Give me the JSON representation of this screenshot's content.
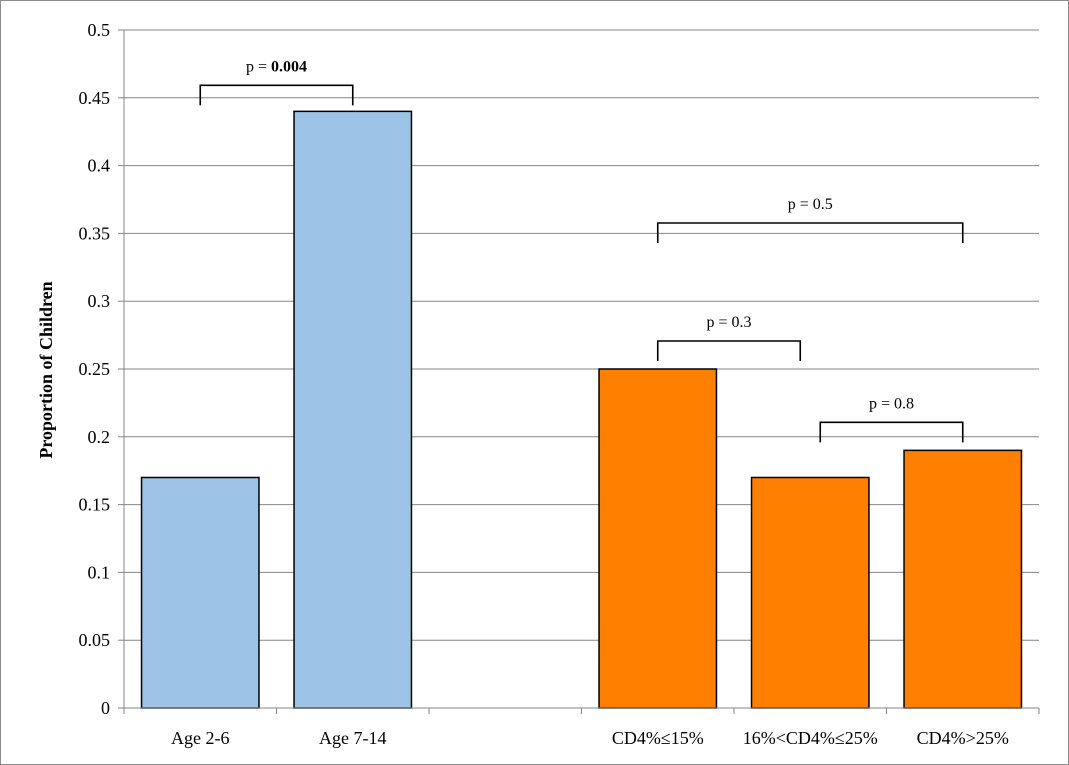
{
  "chart_data": {
    "type": "bar",
    "title": "",
    "xlabel": "",
    "ylabel": "Proportion of Children",
    "ylim": [
      0,
      0.5
    ],
    "yticks": [
      "0",
      "0.05",
      "0.1",
      "0.15",
      "0.2",
      "0.25",
      "0.3",
      "0.35",
      "0.4",
      "0.45",
      "0.5"
    ],
    "grid": true,
    "categories": [
      "Age 2-6",
      "Age 7-14",
      "",
      "CD4%≤15%",
      "16%<CD4%≤25%",
      "CD4%>25%"
    ],
    "values": [
      0.17,
      0.44,
      null,
      0.25,
      0.17,
      0.19
    ],
    "colors": [
      "#9dc3e6",
      "#9dc3e6",
      null,
      "#ff7f00",
      "#ff7f00",
      "#ff7f00"
    ],
    "annotations": [
      {
        "label_prefix": "p = ",
        "label_value": "0.004",
        "bold": true,
        "from": 0,
        "to": 1
      },
      {
        "label_prefix": "p = ",
        "label_value": "0.5",
        "bold": false,
        "from": 3,
        "to": 5
      },
      {
        "label_prefix": "p = ",
        "label_value": "0.3",
        "bold": false,
        "from": 3,
        "to": 4
      },
      {
        "label_prefix": "p = ",
        "label_value": "0.8",
        "bold": false,
        "from": 4,
        "to": 5
      }
    ]
  }
}
